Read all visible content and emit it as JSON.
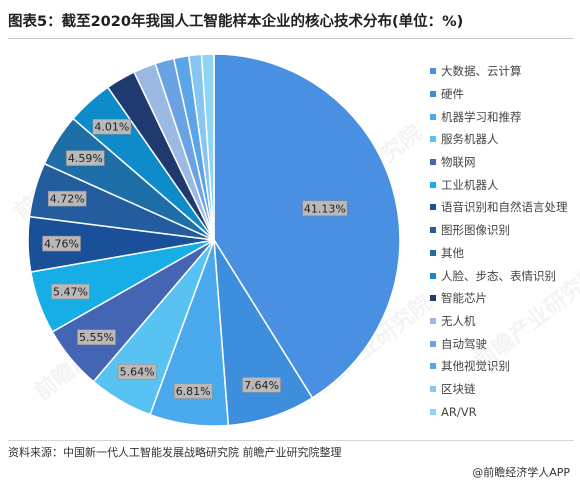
{
  "header": {
    "title": "图表5：截至2020年我国人工智能样本企业的核心技术分布(单位：%)"
  },
  "chart_data": {
    "type": "pie",
    "title": "图表5：截至2020年我国人工智能样本企业的核心技术分布(单位：%)",
    "start_angle_deg": 0,
    "direction": "clockwise",
    "legend_position": "right",
    "categories": [
      "大数据、云计算",
      "硬件",
      "机器学习和推荐",
      "服务机器人",
      "物联网",
      "工业机器人",
      "语音识别和自然语言处理",
      "图形图像识别",
      "其他",
      "人脸、步态、表情识别",
      "智能芯片",
      "无人机",
      "自动驾驶",
      "其他视觉识别",
      "区块链",
      "AR/VR"
    ],
    "values": [
      41.13,
      7.64,
      6.81,
      5.64,
      5.55,
      5.47,
      4.76,
      4.72,
      4.59,
      4.01,
      2.6,
      1.95,
      1.65,
      1.3,
      1.1,
      1.07
    ],
    "data_labels": [
      "41.13%",
      "7.64%",
      "6.81%",
      "5.64%",
      "5.55%",
      "5.47%",
      "4.76%",
      "4.72%",
      "4.59%",
      "4.01%",
      "",
      "",
      "",
      "",
      "",
      ""
    ],
    "colors": [
      "#4a90e2",
      "#3d8fde",
      "#4aa8ec",
      "#58c3f2",
      "#4465b3",
      "#17aee8",
      "#1a4f9a",
      "#235d9e",
      "#1e6fa8",
      "#0d8cc9",
      "#1f3a6e",
      "#9ab9e3",
      "#6aa2e3",
      "#5aa5e6",
      "#86c6f0",
      "#8fd3f5"
    ]
  },
  "footer": {
    "source": "资料来源：中国新一代人工智能发展战略研究院 前瞻产业研究院整理",
    "brand": "@前瞻经济学人APP"
  },
  "watermark_text": "前瞻产业研究院"
}
